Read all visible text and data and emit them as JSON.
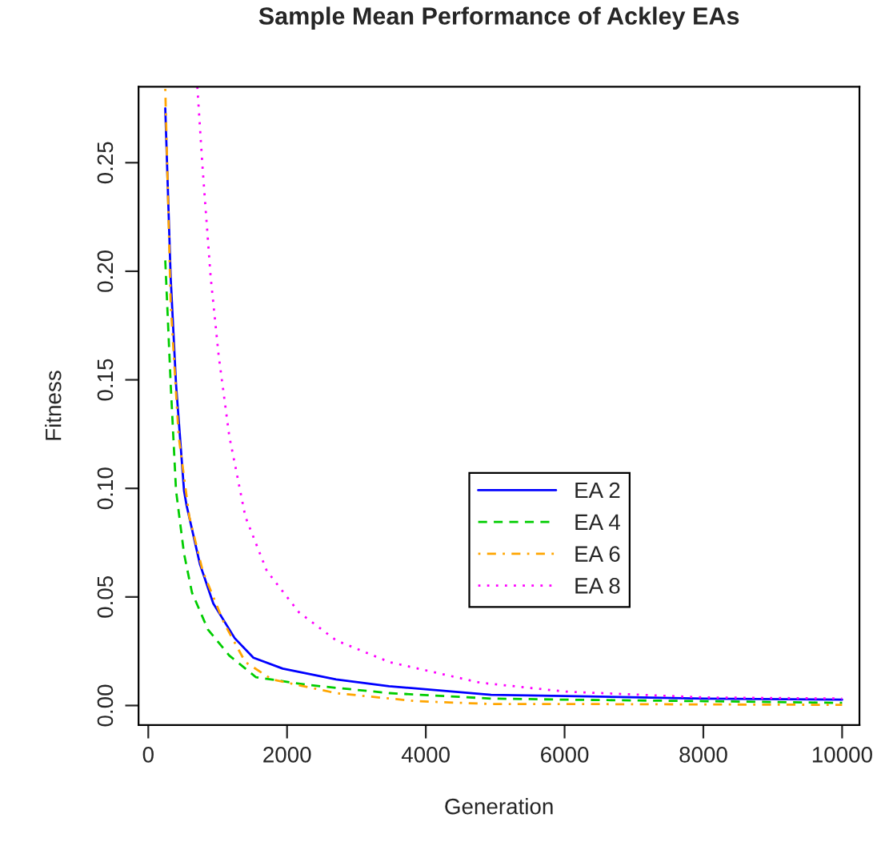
{
  "chart_data": {
    "type": "line",
    "title": "Sample Mean Performance of Ackley EAs",
    "xlabel": "Generation",
    "ylabel": "Fitness",
    "xlim": [
      -140,
      10250
    ],
    "ylim": [
      -0.009,
      0.285
    ],
    "xticks": [
      0,
      2000,
      4000,
      6000,
      8000,
      10000
    ],
    "yticks": [
      {
        "value": 0,
        "label": "0.00"
      },
      {
        "value": 0.05,
        "label": "0.05"
      },
      {
        "value": 0.1,
        "label": "0.10"
      },
      {
        "value": 0.15,
        "label": "0.15"
      },
      {
        "value": 0.2,
        "label": "0.20"
      },
      {
        "value": 0.25,
        "label": "0.25"
      }
    ],
    "grid": false,
    "legend": "center",
    "marker": "none",
    "series": [
      {
        "name": "EA 2",
        "color": "#0000ff",
        "line_style": "solid",
        "x": [
          245,
          323,
          400,
          515,
          553,
          745,
          937,
          1246,
          1515,
          1938,
          2707,
          3470,
          4940,
          6015,
          8015,
          10000
        ],
        "values": [
          0.275,
          0.197,
          0.148,
          0.099,
          0.092,
          0.065,
          0.047,
          0.031,
          0.022,
          0.017,
          0.012,
          0.0089,
          0.0049,
          0.0044,
          0.0032,
          0.0027
        ]
      },
      {
        "name": "EA 4",
        "color": "#00cd00",
        "line_style": "dashed",
        "x": [
          245,
          323,
          400,
          515,
          630,
          860,
          1168,
          1553,
          2322,
          3476,
          4940,
          6015,
          8015,
          10000
        ],
        "values": [
          0.205,
          0.148,
          0.099,
          0.07,
          0.052,
          0.035,
          0.023,
          0.013,
          0.0094,
          0.0057,
          0.0032,
          0.0027,
          0.002,
          0.0012
        ]
      },
      {
        "name": "EA 6",
        "color": "#ffa500",
        "line_style": "dashdot",
        "x": [
          245,
          323,
          438,
          591,
          784,
          1091,
          1399,
          1784,
          2707,
          3861,
          4940,
          6015,
          8015,
          10000
        ],
        "values": [
          0.284,
          0.185,
          0.124,
          0.087,
          0.062,
          0.038,
          0.02,
          0.012,
          0.0057,
          0.002,
          0.0007,
          0.0007,
          0.0005,
          0.0003
        ]
      },
      {
        "name": "EA 8",
        "color": "#ff00ff",
        "line_style": "dotted",
        "x": [
          707,
          784,
          900,
          1015,
          1168,
          1399,
          1708,
          2170,
          2707,
          3476,
          4785,
          6015,
          8015,
          10000
        ],
        "values": [
          0.285,
          0.247,
          0.197,
          0.161,
          0.124,
          0.087,
          0.062,
          0.043,
          0.03,
          0.02,
          0.0105,
          0.0064,
          0.0037,
          0.0032
        ]
      }
    ]
  }
}
